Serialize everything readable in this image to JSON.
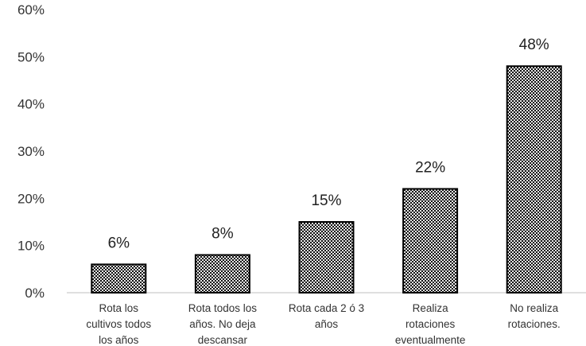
{
  "chart_data": {
    "type": "bar",
    "categories": [
      [
        "Rota los",
        "cultivos todos",
        "los años"
      ],
      [
        "Rota todos los",
        "años. No deja",
        "descansar"
      ],
      [
        "Rota cada 2 ó 3",
        "años"
      ],
      [
        "Realiza",
        "rotaciones",
        "eventualmente"
      ],
      [
        "No realiza",
        "rotaciones."
      ]
    ],
    "values": [
      6,
      8,
      15,
      22,
      48
    ],
    "data_labels": [
      "6%",
      "8%",
      "15%",
      "22%",
      "48%"
    ],
    "y_ticks": [
      "0%",
      "10%",
      "20%",
      "30%",
      "40%",
      "50%",
      "60%"
    ],
    "ylim": [
      0,
      60
    ],
    "grid": false,
    "legend": "none",
    "bar_pattern": "black-white dotted hatch",
    "bar_color": "#000000"
  }
}
